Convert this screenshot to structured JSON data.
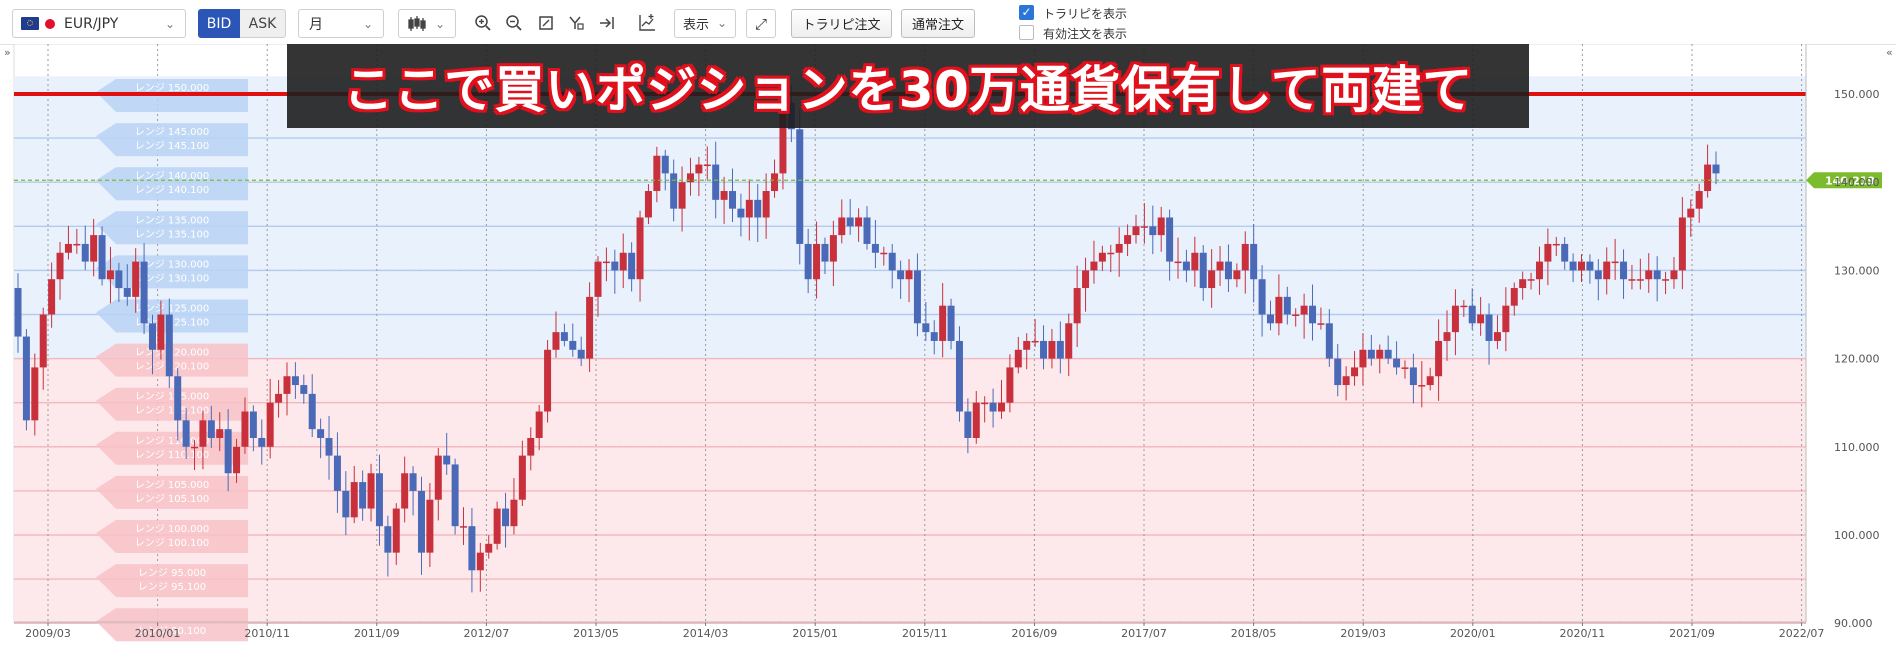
{
  "toolbar": {
    "pair": "EUR/JPY",
    "bid": "BID",
    "ask": "ASK",
    "period": "月",
    "display": "表示",
    "trap_order": "トラリピ注文",
    "normal_order": "通常注文",
    "show_trap_label": "トラリピを表示",
    "show_trap_checked": true,
    "show_active_label": "有効注文を表示",
    "show_active_checked": false
  },
  "colors": {
    "bull": "#c8303c",
    "bear": "#4a6ab8",
    "buy_zone": "#e9f1fd",
    "sell_zone": "#fde9eb",
    "buy_line": "#b3ccee",
    "sell_line": "#f3b7be",
    "current_price": "#7dbb2e",
    "hold_line": "#e01010"
  },
  "banner": {
    "text": "ここで買いポジションを30万通貨保有して両建て"
  },
  "current_price_label": "140.219",
  "chart_data": {
    "type": "candlestick",
    "x_ticks": [
      "2009/03",
      "2010/01",
      "2010/11",
      "2011/09",
      "2012/07",
      "2013/05",
      "2014/03",
      "2015/01",
      "2015/11",
      "2016/09",
      "2017/07",
      "2018/05",
      "2019/03",
      "2020/01",
      "2020/11",
      "2021/09",
      "2022/07"
    ],
    "y_ticks": [
      "150.000",
      "140.000",
      "130.000",
      "120.000",
      "110.000",
      "100.000",
      "90.000"
    ],
    "y_range": [
      88,
      152
    ],
    "current_price": 140.219,
    "hold_line_price": 150.0,
    "trap_orders": [
      {
        "label1": "レンジ 150.000",
        "label2": ""
      },
      {
        "label1": "レンジ 145.000",
        "label2": "レンジ 145.100"
      },
      {
        "label1": "レンジ 140.000",
        "label2": "レンジ 140.100"
      },
      {
        "label1": "レンジ 135.000",
        "label2": "レンジ 135.100"
      },
      {
        "label1": "レンジ 130.000",
        "label2": "レンジ 130.100"
      },
      {
        "label1": "レンジ 125.000",
        "label2": "レンジ 125.100"
      },
      {
        "label1": "レンジ 120.000",
        "label2": "レンジ 120.100"
      },
      {
        "label1": "レンジ 115.000",
        "label2": "レンジ 115.100"
      },
      {
        "label1": "レンジ 110.000",
        "label2": "レンジ 110.100"
      },
      {
        "label1": "レンジ 105.000",
        "label2": "レンジ 105.100"
      },
      {
        "label1": "レンジ 100.000",
        "label2": "レンジ 100.100"
      },
      {
        "label1": "レンジ 95.000",
        "label2": "レンジ 95.100"
      },
      {
        "label1": "",
        "label2": "レンジ 90.100"
      }
    ],
    "closes": [
      122.5,
      113,
      119,
      125,
      129,
      132,
      133,
      133,
      131,
      134,
      129,
      130,
      128,
      127,
      131,
      124,
      121,
      125,
      118,
      113,
      110,
      110,
      113,
      111,
      112,
      107,
      110,
      114,
      111,
      110,
      115,
      116,
      118,
      117,
      116,
      112,
      111,
      109,
      105,
      102,
      106,
      103,
      107,
      101,
      98,
      103,
      107,
      105,
      98,
      104,
      109,
      108,
      101,
      101,
      96,
      98,
      99,
      103,
      101,
      104,
      109,
      111,
      114,
      121,
      123,
      122,
      121,
      120,
      127,
      131,
      131,
      130,
      132,
      129,
      136,
      139,
      143,
      141,
      137,
      140,
      141,
      142,
      142,
      138,
      139,
      137,
      136,
      138,
      136,
      139,
      141,
      149,
      146,
      133,
      129,
      133,
      131,
      134,
      136,
      135,
      136,
      133,
      132,
      132,
      130,
      129,
      130,
      124,
      123,
      122,
      126,
      122,
      114,
      111,
      115,
      115,
      114,
      115,
      119,
      121,
      122,
      122,
      120,
      122,
      120,
      124,
      128,
      130,
      131,
      132,
      132,
      133,
      134,
      135,
      135,
      134,
      136,
      131,
      131,
      130,
      132,
      128,
      130,
      131,
      129,
      130,
      133,
      129,
      125,
      124,
      127,
      125,
      125,
      126,
      124,
      124,
      120,
      117,
      118,
      119,
      121,
      120,
      121,
      120,
      119,
      119,
      117,
      117,
      118,
      122,
      123,
      126,
      126,
      124,
      125,
      122,
      123,
      126,
      128,
      129,
      129,
      131,
      133,
      133,
      131,
      130,
      131,
      130,
      129,
      131,
      131,
      129,
      129,
      129,
      130,
      129,
      129,
      130,
      136,
      137,
      139,
      142,
      141
    ]
  }
}
